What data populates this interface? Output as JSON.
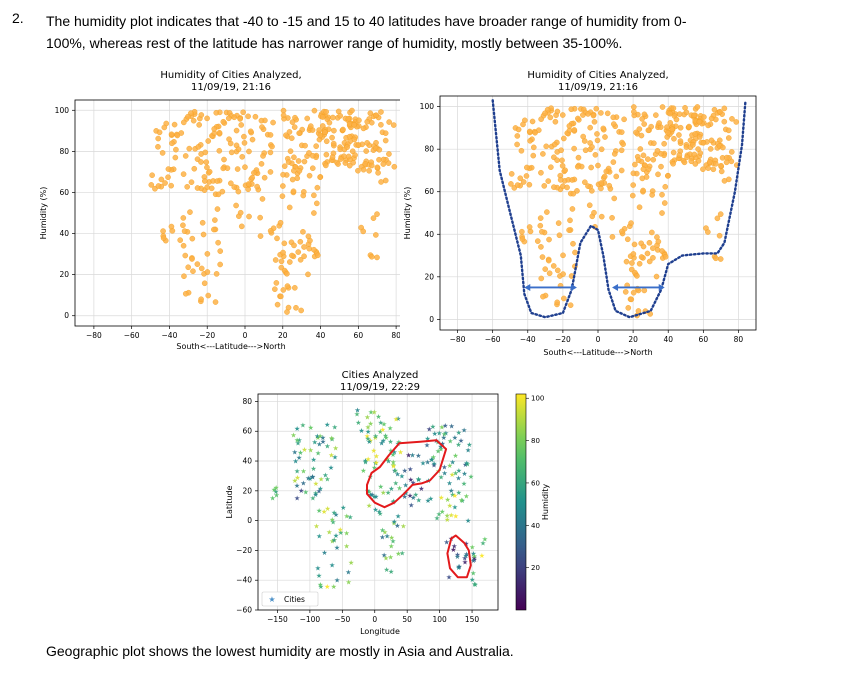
{
  "document": {
    "item_number": "2.",
    "paragraph_line1": "The humidity  plot indicates that -40 to -15 and 15 to 40 latitudes have broader range of humidity  from 0-",
    "paragraph_line2": "100%, whereas rest of the latitude has narrower range of humidity,  mostly between 35-100%.",
    "closing": "Geographic plot shows the lowest humidity  are mostly in Asia and Australia."
  },
  "colors": {
    "scatter_fill": "#fdb147",
    "scatter_edge": "#f4a020",
    "dotted_curve": "#1f3f8f",
    "arrow": "#3b6fc9",
    "highlight": "#e31a1c"
  },
  "chart_data": [
    {
      "type": "scatter",
      "title": "Humidity of Cities Analyzed,",
      "subtitle": "11/09/19, 21:16",
      "xlabel": "South<---Latitude--->North",
      "ylabel": "Humidity (%)",
      "xlim": [
        -90,
        90
      ],
      "ylim": [
        -5,
        105
      ],
      "xticks": [
        "−80",
        "−60",
        "−40",
        "−20",
        "0",
        "20",
        "40",
        "60",
        "80"
      ],
      "yticks": [
        "0",
        "20",
        "40",
        "60",
        "80",
        "100"
      ],
      "grid": true,
      "points_note": "approx. 550 city observations, latitude -55..80, humidity 0..100"
    },
    {
      "type": "scatter",
      "title": "Humidity of Cities Analyzed,",
      "subtitle": "11/09/19, 21:16",
      "xlabel": "South<---Latitude--->North",
      "ylabel": "Humidity (%)",
      "xlim": [
        -90,
        90
      ],
      "ylim": [
        -5,
        105
      ],
      "xticks": [
        "−80",
        "−60",
        "−40",
        "−20",
        "0",
        "20",
        "40",
        "60",
        "80"
      ],
      "yticks": [
        "0",
        "20",
        "40",
        "60",
        "80",
        "100"
      ],
      "grid": true,
      "annotations": [
        "dotted envelope",
        "arrow -42 to -12 at 15",
        "arrow 8 to 38 at 15"
      ]
    },
    {
      "type": "scatter",
      "title": "Cities Analyzed",
      "subtitle": "11/09/19, 22:29",
      "xlabel": "Longitude",
      "ylabel": "Latitude",
      "xlim": [
        -180,
        190
      ],
      "ylim": [
        -60,
        85
      ],
      "xticks": [
        "−150",
        "−100",
        "−50",
        "0",
        "50",
        "100",
        "150"
      ],
      "yticks": [
        "−60",
        "−40",
        "−20",
        "0",
        "20",
        "40",
        "60",
        "80"
      ],
      "colorbar_label": "Humidity",
      "colorbar_ticks": [
        "20",
        "40",
        "60",
        "80",
        "100"
      ],
      "legend": "Cities",
      "legend_position": "lower-left",
      "grid": true
    }
  ]
}
